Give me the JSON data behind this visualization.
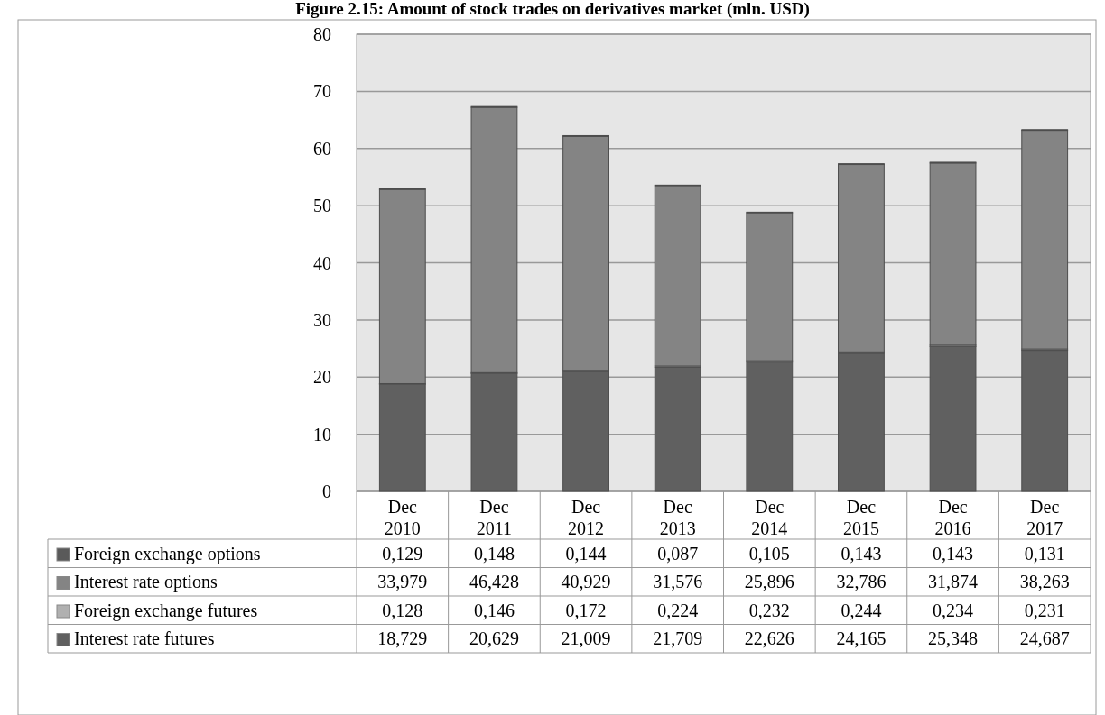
{
  "chart_data": {
    "type": "bar",
    "title": "Figure 2.15: Amount of stock trades on derivatives market (mln. USD)",
    "stacked": true,
    "categories": [
      "Dec 2010",
      "Dec 2011",
      "Dec 2012",
      "Dec 2013",
      "Dec 2014",
      "Dec 2015",
      "Dec 2016",
      "Dec 2017"
    ],
    "series": [
      {
        "name": "Interest rate futures",
        "color": "#606060",
        "values": [
          18.729,
          20.629,
          21.009,
          21.709,
          22.626,
          24.165,
          25.348,
          24.687
        ],
        "value_labels": [
          "18,729",
          "20,629",
          "21,009",
          "21,709",
          "22,626",
          "24,165",
          "25,348",
          "24,687"
        ]
      },
      {
        "name": "Foreign exchange futures",
        "color": "#b0b0b0",
        "values": [
          0.128,
          0.146,
          0.172,
          0.224,
          0.232,
          0.244,
          0.234,
          0.231
        ],
        "value_labels": [
          "0,128",
          "0,146",
          "0,172",
          "0,224",
          "0,232",
          "0,244",
          "0,234",
          "0,231"
        ]
      },
      {
        "name": "Interest rate options",
        "color": "#848484",
        "values": [
          33.979,
          46.428,
          40.929,
          31.576,
          25.896,
          32.786,
          31.874,
          38.263
        ],
        "value_labels": [
          "33,979",
          "46,428",
          "40,929",
          "31,576",
          "25,896",
          "32,786",
          "31,874",
          "38,263"
        ]
      },
      {
        "name": "Foreign exchange options",
        "color": "#5a5a5a",
        "values": [
          0.129,
          0.148,
          0.144,
          0.087,
          0.105,
          0.143,
          0.143,
          0.131
        ],
        "value_labels": [
          "0,129",
          "0,148",
          "0,144",
          "0,087",
          "0,105",
          "0,143",
          "0,143",
          "0,131"
        ]
      }
    ],
    "ylim": [
      0,
      80
    ],
    "yticks": [
      0,
      10,
      20,
      30,
      40,
      50,
      60,
      70,
      80
    ],
    "grid": "y",
    "legend": "bottom"
  }
}
